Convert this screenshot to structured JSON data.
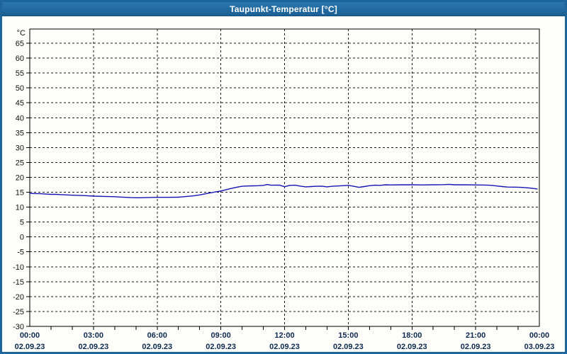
{
  "window": {
    "title": "Taupunkt-Temperatur [°C]"
  },
  "chart_data": {
    "type": "line",
    "title": "Taupunkt-Temperatur [°C]",
    "xlabel": "",
    "ylabel": "°C",
    "legend": "none",
    "grid": "dashed horizontal every 5°C, dashed vertical every 3h, minor x ticks hourly",
    "ylim": [
      -30,
      69.75
    ],
    "xlim_hours": [
      0,
      24
    ],
    "y_ticks": [
      65,
      60,
      55,
      50,
      45,
      40,
      35,
      30,
      25,
      20,
      15,
      10,
      5,
      0,
      -5,
      -10,
      -15,
      -20,
      -25,
      -30
    ],
    "x_ticks": [
      {
        "hour": 0,
        "time": "00:00",
        "date": "02.09.23"
      },
      {
        "hour": 3,
        "time": "03:00",
        "date": "02.09.23"
      },
      {
        "hour": 6,
        "time": "06:00",
        "date": "02.09.23"
      },
      {
        "hour": 9,
        "time": "09:00",
        "date": "02.09.23"
      },
      {
        "hour": 12,
        "time": "12:00",
        "date": "02.09.23"
      },
      {
        "hour": 15,
        "time": "15:00",
        "date": "02.09.23"
      },
      {
        "hour": 18,
        "time": "18:00",
        "date": "02.09.23"
      },
      {
        "hour": 21,
        "time": "21:00",
        "date": "02.09.23"
      },
      {
        "hour": 24,
        "time": "00:00",
        "date": "03.09.23"
      }
    ],
    "colors": {
      "line": "#1515b4",
      "grid": "#1a1a1a",
      "axis": "#000000",
      "titlebar": "#1e659c",
      "x_label_text": "#0e2a4e",
      "y_label_text": "#111111"
    },
    "series": [
      {
        "name": "Taupunkt",
        "unit": "°C",
        "color": "#1515b4",
        "points": [
          [
            0,
            14.6
          ],
          [
            0.25,
            14.55
          ],
          [
            0.5,
            14.5
          ],
          [
            0.75,
            14.4
          ],
          [
            1,
            14.3
          ],
          [
            1.25,
            14.3
          ],
          [
            1.5,
            14.2
          ],
          [
            1.75,
            14.1
          ],
          [
            2,
            14.0
          ],
          [
            2.5,
            13.9
          ],
          [
            2.75,
            13.8
          ],
          [
            3,
            13.7
          ],
          [
            3.5,
            13.6
          ],
          [
            4,
            13.5
          ],
          [
            4.25,
            13.4
          ],
          [
            4.5,
            13.3
          ],
          [
            4.75,
            13.2
          ],
          [
            5,
            13.15
          ],
          [
            5.25,
            13.15
          ],
          [
            5.5,
            13.2
          ],
          [
            6,
            13.3
          ],
          [
            6.5,
            13.3
          ],
          [
            7,
            13.35
          ],
          [
            7.25,
            13.5
          ],
          [
            7.5,
            13.65
          ],
          [
            7.75,
            13.85
          ],
          [
            8,
            14.1
          ],
          [
            8.25,
            14.45
          ],
          [
            8.5,
            14.8
          ],
          [
            8.75,
            15.1
          ],
          [
            9,
            15.4
          ],
          [
            9.25,
            15.85
          ],
          [
            9.5,
            16.3
          ],
          [
            9.75,
            16.7
          ],
          [
            10,
            17.0
          ],
          [
            10.25,
            17.1
          ],
          [
            10.5,
            17.15
          ],
          [
            10.75,
            17.2
          ],
          [
            11,
            17.3
          ],
          [
            11.2,
            17.6
          ],
          [
            11.35,
            17.35
          ],
          [
            11.75,
            17.4
          ],
          [
            12,
            16.85
          ],
          [
            12.25,
            17.3
          ],
          [
            12.5,
            17.35
          ],
          [
            12.75,
            17.05
          ],
          [
            13,
            16.8
          ],
          [
            13.25,
            16.9
          ],
          [
            13.5,
            17.0
          ],
          [
            13.75,
            17.05
          ],
          [
            14,
            16.8
          ],
          [
            14.25,
            17.0
          ],
          [
            14.5,
            17.1
          ],
          [
            15,
            17.3
          ],
          [
            15.25,
            17.0
          ],
          [
            15.5,
            16.65
          ],
          [
            15.75,
            16.9
          ],
          [
            16,
            17.2
          ],
          [
            16.25,
            17.35
          ],
          [
            16.5,
            17.3
          ],
          [
            16.75,
            17.5
          ],
          [
            17,
            17.45
          ],
          [
            17.5,
            17.5
          ],
          [
            18,
            17.5
          ],
          [
            18.5,
            17.45
          ],
          [
            19,
            17.5
          ],
          [
            19.5,
            17.55
          ],
          [
            19.75,
            17.65
          ],
          [
            20,
            17.5
          ],
          [
            20.5,
            17.5
          ],
          [
            21,
            17.45
          ],
          [
            21.5,
            17.4
          ],
          [
            21.75,
            17.3
          ],
          [
            22,
            17.1
          ],
          [
            22.25,
            16.9
          ],
          [
            22.5,
            16.75
          ],
          [
            23,
            16.7
          ],
          [
            23.25,
            16.6
          ],
          [
            23.5,
            16.45
          ],
          [
            23.75,
            16.25
          ],
          [
            23.9,
            16.1
          ]
        ]
      }
    ]
  }
}
